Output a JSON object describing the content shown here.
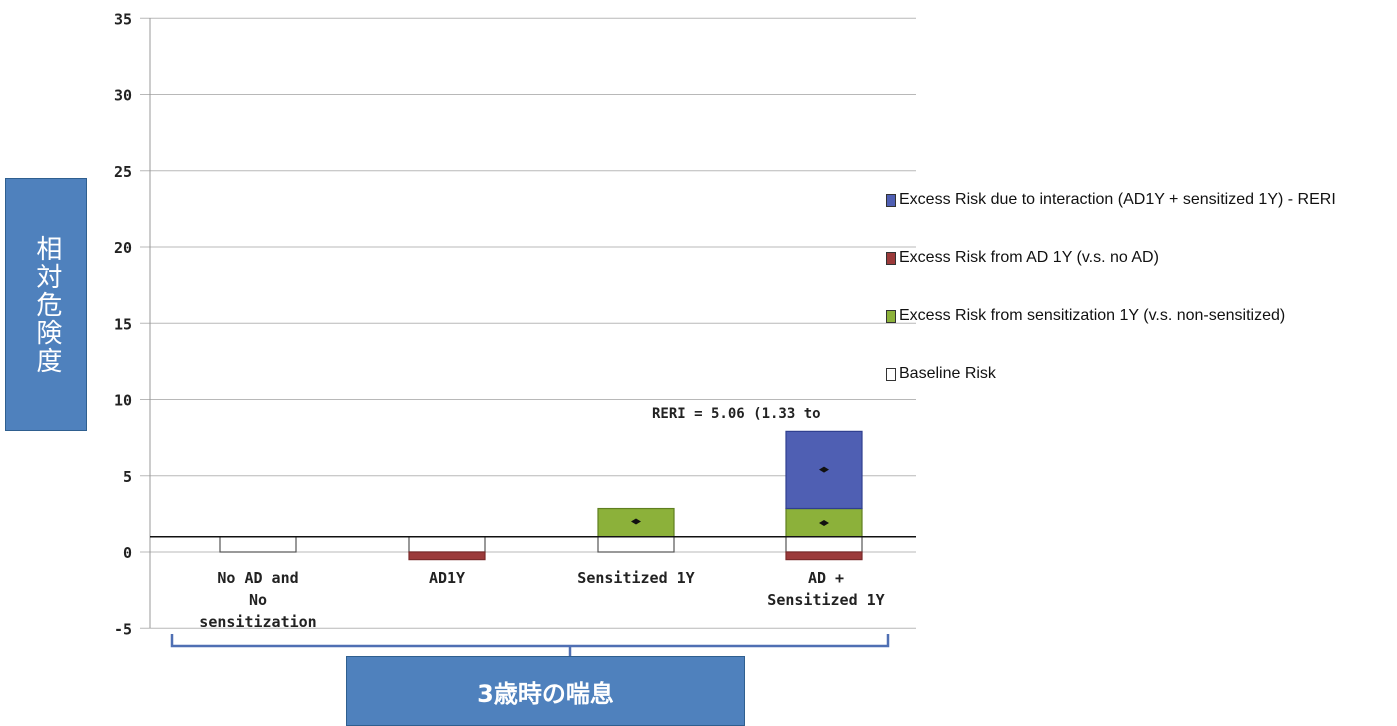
{
  "y_axis_label": "相対危険度",
  "x_group_label": "3歳時の喘息",
  "annotation": "RERI = 5.06 (1.33 to",
  "colors": {
    "interaction": "#4f5fb3",
    "ad": "#9b3a3a",
    "sensitization": "#8cb13a",
    "baseline": "#ffffff",
    "label_box": "#4f81bd"
  },
  "legend": [
    {
      "label": "Excess Risk due to interaction (AD1Y + sensitized 1Y) - RERI",
      "color": "#4f5fb3"
    },
    {
      "label": "Excess Risk from AD 1Y (v.s. no AD)",
      "color": "#9b3a3a"
    },
    {
      "label": "Excess Risk from sensitization 1Y (v.s. non-sensitized)",
      "color": "#8cb13a"
    },
    {
      "label": "Baseline Risk",
      "color": "#ffffff"
    }
  ],
  "chart_data": {
    "type": "bar",
    "stacked": true,
    "categories": [
      [
        "No AD and",
        "No",
        "sensitization"
      ],
      [
        "AD1Y"
      ],
      [
        "Sensitized 1Y"
      ],
      [
        "AD +",
        "Sensitized 1Y"
      ]
    ],
    "series": [
      {
        "name": "Baseline Risk",
        "color": "#ffffff",
        "values": [
          1,
          1,
          1,
          1
        ]
      },
      {
        "name": "Excess Risk from AD 1Y (v.s. no AD)",
        "color": "#9b3a3a",
        "values": [
          0,
          -0.5,
          0,
          -0.5
        ]
      },
      {
        "name": "Excess Risk from sensitization 1Y (v.s. non-sensitized)",
        "color": "#8cb13a",
        "values": [
          0,
          0,
          1.85,
          1.85
        ]
      },
      {
        "name": "Excess Risk due to interaction (AD1Y + sensitized 1Y) - RERI",
        "color": "#4f5fb3",
        "values": [
          0,
          0,
          0,
          5.06
        ]
      }
    ],
    "point_estimates": [
      {
        "category": 2,
        "value": 2.0
      },
      {
        "category": 3,
        "value": 1.9
      },
      {
        "category": 3,
        "value": 5.4
      }
    ],
    "reference_line": 1,
    "ylim": [
      -5,
      35
    ],
    "yticks": [
      35,
      30,
      25,
      20,
      15,
      10,
      5,
      0,
      -5
    ],
    "grid": true,
    "legend_position": "right"
  }
}
